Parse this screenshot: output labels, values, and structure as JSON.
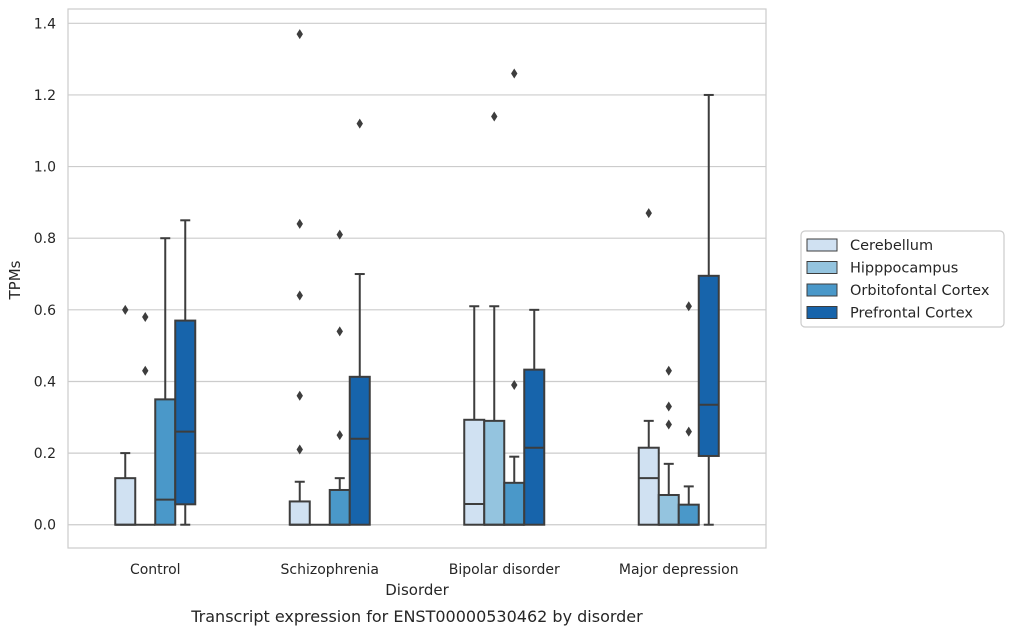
{
  "chart_data": {
    "type": "boxplot",
    "caption": "Transcript expression for ENST00000530462 by disorder",
    "xlabel": "Disorder",
    "ylabel": "TPMs",
    "ylim": [
      -0.065,
      1.44
    ],
    "yticks": [
      0.0,
      0.2,
      0.4,
      0.6,
      0.8,
      1.0,
      1.2,
      1.4
    ],
    "ytick_labels": [
      "0.0",
      "0.2",
      "0.4",
      "0.6",
      "0.8",
      "1.0",
      "1.2",
      "1.4"
    ],
    "grid": "horizontal",
    "legend_position": "right",
    "categories": [
      "Control",
      "Schizophrenia",
      "Bipolar disorder",
      "Major depression"
    ],
    "series": [
      {
        "name": "Cerebellum",
        "color": "#d0e1f2",
        "boxes": [
          {
            "whisker_low": 0.0,
            "q1": 0.0,
            "median": 0.0,
            "q3": 0.13,
            "whisker_high": 0.2,
            "outliers": [
              0.6
            ]
          },
          {
            "whisker_low": 0.0,
            "q1": 0.0,
            "median": 0.0,
            "q3": 0.065,
            "whisker_high": 0.12,
            "outliers": [
              0.21,
              0.36,
              0.64,
              0.84,
              1.37
            ]
          },
          {
            "whisker_low": 0.0,
            "q1": 0.0,
            "median": 0.058,
            "q3": 0.293,
            "whisker_high": 0.61,
            "outliers": []
          },
          {
            "whisker_low": 0.0,
            "q1": 0.0,
            "median": 0.13,
            "q3": 0.215,
            "whisker_high": 0.29,
            "outliers": [
              0.87
            ]
          }
        ]
      },
      {
        "name": "Hipppocampus",
        "color": "#94c4df",
        "boxes": [
          {
            "whisker_low": 0.0,
            "q1": 0.0,
            "median": 0.0,
            "q3": 0.0,
            "whisker_high": 0.0,
            "outliers": [
              0.43,
              0.58
            ]
          },
          {
            "whisker_low": 0.0,
            "q1": 0.0,
            "median": 0.0,
            "q3": 0.0,
            "whisker_high": 0.0,
            "outliers": []
          },
          {
            "whisker_low": 0.0,
            "q1": 0.0,
            "median": 0.0,
            "q3": 0.29,
            "whisker_high": 0.61,
            "outliers": [
              1.14
            ]
          },
          {
            "whisker_low": 0.0,
            "q1": 0.0,
            "median": 0.0,
            "q3": 0.083,
            "whisker_high": 0.17,
            "outliers": [
              0.28,
              0.33,
              0.43
            ]
          }
        ]
      },
      {
        "name": "Orbitofontal Cortex",
        "color": "#4a98c9",
        "boxes": [
          {
            "whisker_low": 0.0,
            "q1": 0.0,
            "median": 0.07,
            "q3": 0.35,
            "whisker_high": 0.8,
            "outliers": []
          },
          {
            "whisker_low": 0.0,
            "q1": 0.0,
            "median": 0.0,
            "q3": 0.097,
            "whisker_high": 0.13,
            "outliers": [
              0.25,
              0.54,
              0.81
            ]
          },
          {
            "whisker_low": 0.0,
            "q1": 0.0,
            "median": 0.0,
            "q3": 0.117,
            "whisker_high": 0.19,
            "outliers": [
              0.39,
              1.26
            ]
          },
          {
            "whisker_low": 0.0,
            "q1": 0.0,
            "median": 0.0,
            "q3": 0.056,
            "whisker_high": 0.107,
            "outliers": [
              0.26,
              0.61
            ]
          }
        ]
      },
      {
        "name": "Prefrontal Cortex",
        "color": "#1764ab",
        "boxes": [
          {
            "whisker_low": 0.0,
            "q1": 0.057,
            "median": 0.26,
            "q3": 0.57,
            "whisker_high": 0.85,
            "outliers": []
          },
          {
            "whisker_low": 0.0,
            "q1": 0.0,
            "median": 0.24,
            "q3": 0.413,
            "whisker_high": 0.7,
            "outliers": [
              1.12
            ]
          },
          {
            "whisker_low": 0.0,
            "q1": 0.0,
            "median": 0.215,
            "q3": 0.433,
            "whisker_high": 0.6,
            "outliers": []
          },
          {
            "whisker_low": 0.0,
            "q1": 0.192,
            "median": 0.335,
            "q3": 0.695,
            "whisker_high": 1.2,
            "outliers": []
          }
        ]
      }
    ]
  }
}
